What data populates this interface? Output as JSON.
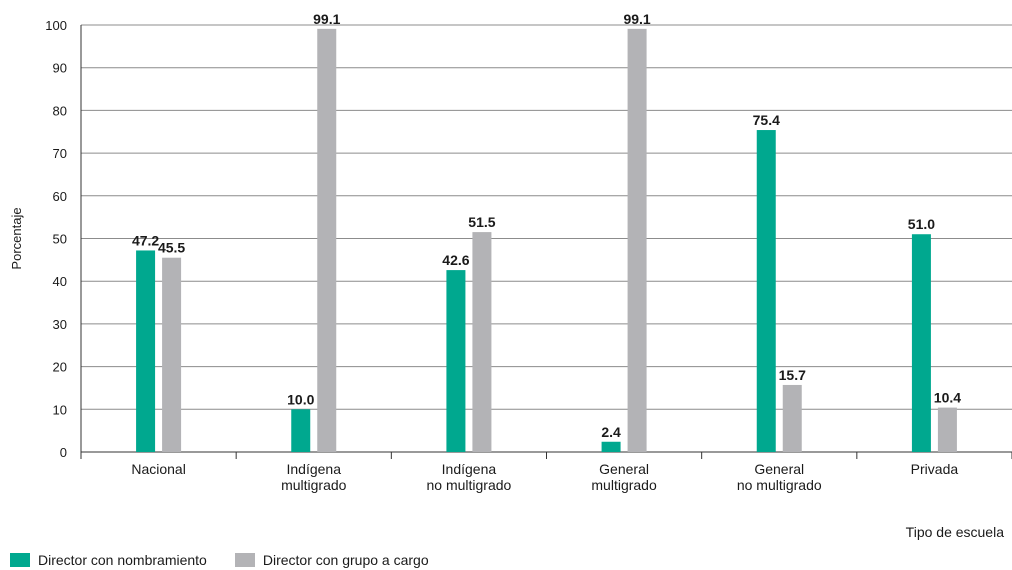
{
  "chart_data": {
    "type": "bar",
    "ylabel": "Porcentaje",
    "xlabel": "Tipo de escuela",
    "ylim": [
      0,
      100
    ],
    "yticks": [
      0,
      10,
      20,
      30,
      40,
      50,
      60,
      70,
      80,
      90,
      100
    ],
    "categories": [
      [
        "Nacional"
      ],
      [
        "Indígena",
        "multigrado"
      ],
      [
        "Indígena",
        "no multigrado"
      ],
      [
        "General",
        "multigrado"
      ],
      [
        "General",
        "no multigrado"
      ],
      [
        "Privada"
      ]
    ],
    "series": [
      {
        "name": "Director con nombramiento",
        "color": "#00a88f",
        "values": [
          47.2,
          10.0,
          42.6,
          2.4,
          75.4,
          51.0
        ],
        "labels": [
          "47.2",
          "10.0",
          "42.6",
          "2.4",
          "75.4",
          "51.0"
        ]
      },
      {
        "name": "Director con grupo a cargo",
        "color": "#b3b3b6",
        "values": [
          45.5,
          99.1,
          51.5,
          99.1,
          15.7,
          10.4
        ],
        "labels": [
          "45.5",
          "99.1",
          "51.5",
          "99.1",
          "15.7",
          "10.4"
        ]
      }
    ],
    "grid": true,
    "legend_position": "bottom-left"
  }
}
